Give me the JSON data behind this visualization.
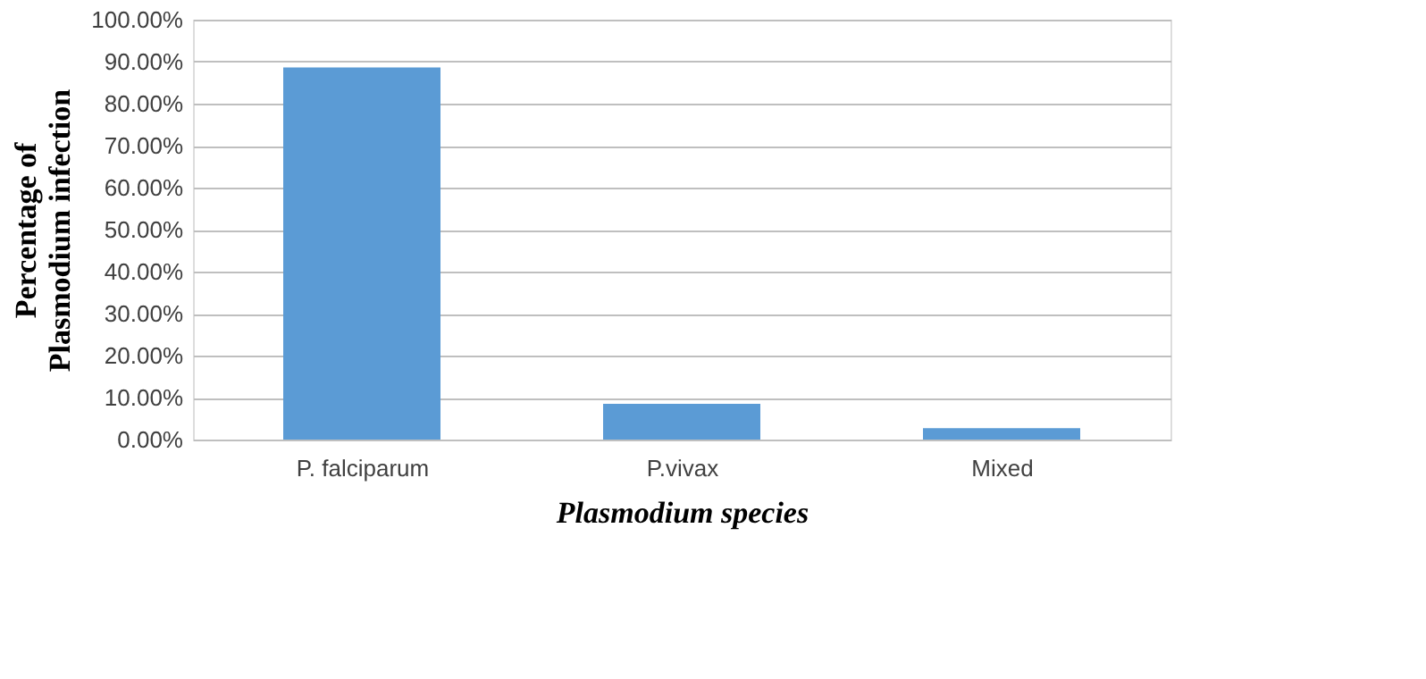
{
  "chart_data": {
    "type": "bar",
    "xlabel": "Plasmodium species",
    "ylabel": "Percentage of Plasmodium infection",
    "categories": [
      "P. falciparum",
      "P.vivax",
      "Mixed"
    ],
    "values": [
      88.6,
      8.5,
      2.7
    ],
    "color": "#5b9bd5",
    "ylim": [
      0,
      100
    ],
    "yticks": [
      {
        "value": 0,
        "label": "0.00%"
      },
      {
        "value": 10,
        "label": "10.00%"
      },
      {
        "value": 20,
        "label": "20.00%"
      },
      {
        "value": 30,
        "label": "30.00%"
      },
      {
        "value": 40,
        "label": "40.00%"
      },
      {
        "value": 50,
        "label": "50.00%"
      },
      {
        "value": 60,
        "label": "60.00%"
      },
      {
        "value": 70,
        "label": "70.00%"
      },
      {
        "value": 80,
        "label": "80.00%"
      },
      {
        "value": 90,
        "label": "90.00%"
      },
      {
        "value": 100,
        "label": "100.00%"
      }
    ],
    "grid": "y"
  }
}
